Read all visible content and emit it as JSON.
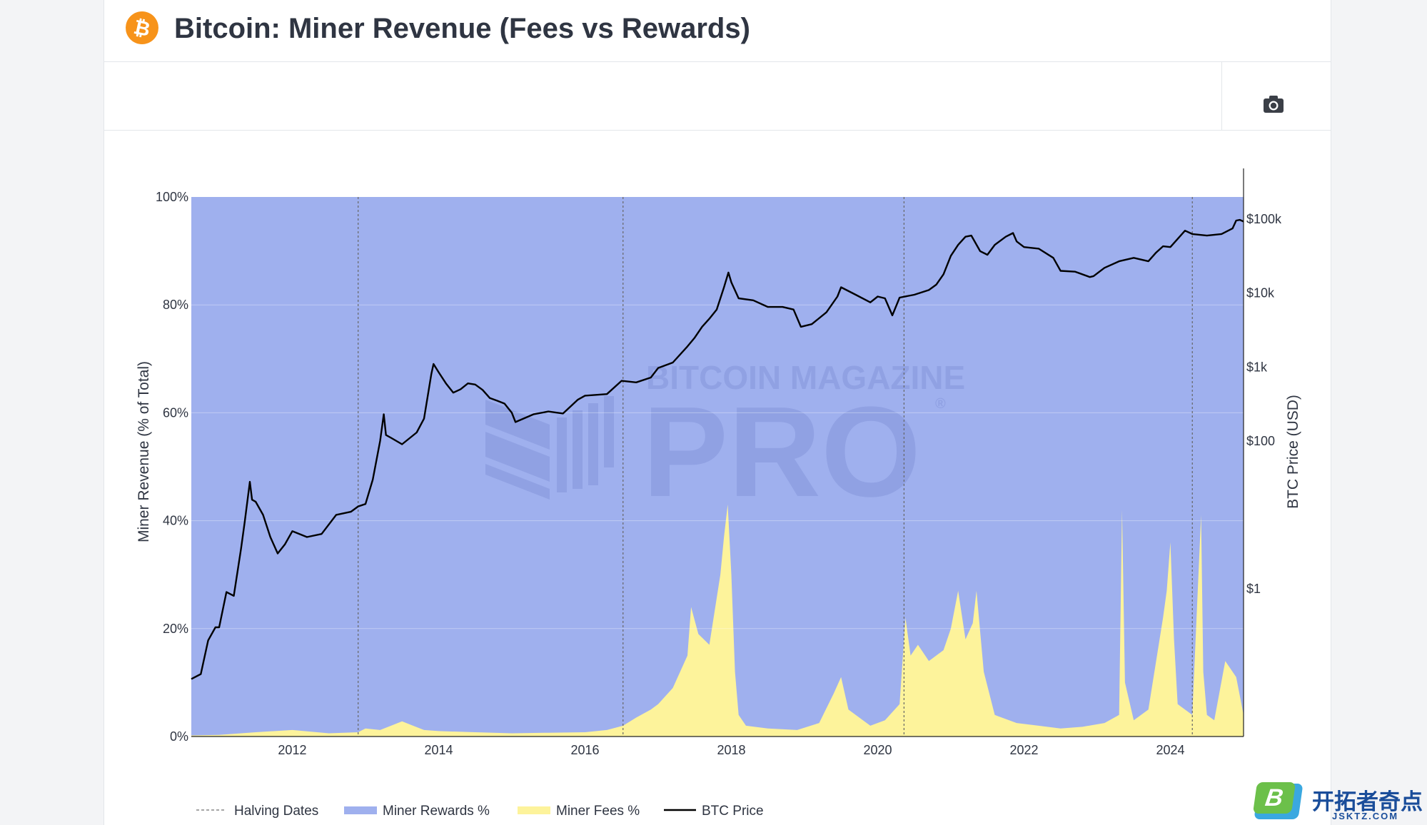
{
  "header": {
    "title": "Bitcoin: Miner Revenue (Fees vs Rewards)",
    "logo_icon": "bitcoin-logo-icon"
  },
  "toolbar": {
    "camera_icon": "camera-icon"
  },
  "watermark": {
    "line1": "BITCOIN MAGAZINE",
    "line2": "PRO",
    "reg": "®"
  },
  "badge": {
    "logo_letter": "B",
    "text_cn": "开拓者奇点",
    "text_en": "JSKTZ.COM"
  },
  "colors": {
    "rewards": "#9fb0ee",
    "fees": "#fdf39b",
    "price": "#000000",
    "halving": "#666666",
    "bitcoin_orange": "#f7931a"
  },
  "chart_data": {
    "type": "area",
    "left_axis": {
      "title": "Miner Revenue (% of Total)",
      "range": [
        0,
        100
      ],
      "ticks": [
        "0%",
        "20%",
        "40%",
        "60%",
        "80%",
        "100%"
      ],
      "tick_values": [
        0,
        20,
        40,
        60,
        80,
        100
      ]
    },
    "right_axis": {
      "title": "BTC Price (USD)",
      "scale": "log",
      "range": [
        0.01,
        200000
      ],
      "ticks": [
        "$1",
        "$100",
        "$1k",
        "$10k",
        "$100k"
      ],
      "tick_values": [
        1,
        100,
        1000,
        10000,
        100000
      ]
    },
    "x_axis": {
      "range": [
        2010.62,
        2025.0
      ],
      "ticks": [
        "2012",
        "2014",
        "2016",
        "2018",
        "2020",
        "2022",
        "2024"
      ],
      "tick_values": [
        2012,
        2014,
        2016,
        2018,
        2020,
        2022,
        2024
      ]
    },
    "grid": true,
    "legend": {
      "placement": "bottom",
      "entries": [
        "Halving Dates",
        "Miner Rewards %",
        "Miner Fees %",
        "BTC Price"
      ]
    },
    "halving_dates": [
      2012.9,
      2016.52,
      2020.36,
      2024.3
    ],
    "series": [
      {
        "name": "Miner Fees %",
        "x": [
          2010.62,
          2011.0,
          2011.5,
          2012.0,
          2012.5,
          2012.9,
          2013.0,
          2013.2,
          2013.5,
          2013.8,
          2014.0,
          2014.5,
          2015.0,
          2015.5,
          2016.0,
          2016.3,
          2016.52,
          2016.7,
          2016.9,
          2017.0,
          2017.2,
          2017.4,
          2017.45,
          2017.55,
          2017.7,
          2017.85,
          2017.9,
          2017.95,
          2018.0,
          2018.05,
          2018.1,
          2018.2,
          2018.5,
          2018.9,
          2019.2,
          2019.4,
          2019.5,
          2019.6,
          2019.9,
          2020.1,
          2020.3,
          2020.38,
          2020.45,
          2020.55,
          2020.7,
          2020.9,
          2021.0,
          2021.1,
          2021.2,
          2021.3,
          2021.35,
          2021.45,
          2021.6,
          2021.9,
          2022.2,
          2022.5,
          2022.8,
          2023.1,
          2023.3,
          2023.34,
          2023.38,
          2023.5,
          2023.7,
          2023.9,
          2023.95,
          2024.0,
          2024.05,
          2024.1,
          2024.3,
          2024.42,
          2024.45,
          2024.5,
          2024.6,
          2024.75,
          2024.9,
          2025.0
        ],
        "values": [
          0.2,
          0.3,
          0.8,
          1.2,
          0.6,
          0.8,
          1.5,
          1.2,
          2.8,
          1.2,
          1.0,
          0.8,
          0.6,
          0.7,
          0.8,
          1.2,
          2.0,
          3.5,
          5.0,
          6.0,
          9.0,
          15.0,
          24.0,
          19.0,
          17.0,
          30.0,
          37.0,
          43.0,
          30.0,
          12.0,
          4.0,
          2.0,
          1.5,
          1.2,
          2.5,
          8.0,
          11.0,
          5.0,
          2.0,
          3.0,
          6.0,
          22.0,
          15.0,
          17.0,
          14.0,
          16.0,
          20.0,
          27.0,
          18.0,
          21.0,
          27.0,
          12.0,
          4.0,
          2.5,
          2.0,
          1.5,
          1.8,
          2.5,
          4.0,
          42.0,
          10.0,
          3.0,
          5.0,
          22.0,
          27.0,
          36.0,
          18.0,
          6.0,
          4.0,
          41.0,
          12.0,
          4.0,
          3.0,
          14.0,
          11.0,
          4.0
        ]
      },
      {
        "name": "Miner Rewards %",
        "values_note": "Miner Rewards % = 100 - Miner Fees %"
      },
      {
        "name": "BTC Price",
        "x": [
          2010.62,
          2010.75,
          2010.85,
          2010.95,
          2011.0,
          2011.1,
          2011.2,
          2011.3,
          2011.35,
          2011.42,
          2011.45,
          2011.5,
          2011.6,
          2011.7,
          2011.8,
          2011.9,
          2012.0,
          2012.2,
          2012.4,
          2012.6,
          2012.8,
          2012.9,
          2013.0,
          2013.1,
          2013.2,
          2013.25,
          2013.28,
          2013.35,
          2013.5,
          2013.7,
          2013.8,
          2013.9,
          2013.93,
          2014.0,
          2014.1,
          2014.2,
          2014.3,
          2014.4,
          2014.5,
          2014.6,
          2014.7,
          2014.8,
          2014.9,
          2015.0,
          2015.05,
          2015.3,
          2015.5,
          2015.7,
          2015.9,
          2016.0,
          2016.3,
          2016.5,
          2016.7,
          2016.9,
          2017.0,
          2017.2,
          2017.4,
          2017.5,
          2017.6,
          2017.7,
          2017.8,
          2017.9,
          2017.96,
          2018.0,
          2018.1,
          2018.3,
          2018.5,
          2018.7,
          2018.85,
          2018.95,
          2019.1,
          2019.3,
          2019.45,
          2019.5,
          2019.7,
          2019.9,
          2020.0,
          2020.1,
          2020.2,
          2020.3,
          2020.5,
          2020.7,
          2020.8,
          2020.9,
          2021.0,
          2021.1,
          2021.2,
          2021.28,
          2021.4,
          2021.5,
          2021.6,
          2021.75,
          2021.85,
          2021.9,
          2022.0,
          2022.2,
          2022.4,
          2022.5,
          2022.7,
          2022.9,
          2022.95,
          2023.1,
          2023.3,
          2023.5,
          2023.7,
          2023.8,
          2023.9,
          2024.0,
          2024.2,
          2024.3,
          2024.5,
          2024.7,
          2024.85,
          2024.9,
          2024.95,
          2025.0
        ],
        "values": [
          0.06,
          0.07,
          0.2,
          0.3,
          0.3,
          0.9,
          0.8,
          3.5,
          8.0,
          28.0,
          16.0,
          15.0,
          10.0,
          5.0,
          3.0,
          4.0,
          6.0,
          5.0,
          5.5,
          10.0,
          11.0,
          13.0,
          14.0,
          30.0,
          100.0,
          230.0,
          120.0,
          110.0,
          90.0,
          130.0,
          200.0,
          800.0,
          1100.0,
          850.0,
          600.0,
          450.0,
          500.0,
          600.0,
          580.0,
          490.0,
          380.0,
          350.0,
          320.0,
          240.0,
          180.0,
          230.0,
          250.0,
          235.0,
          360.0,
          410.0,
          430.0,
          650.0,
          620.0,
          720.0,
          970.0,
          1150.0,
          1900.0,
          2500.0,
          3500.0,
          4500.0,
          6000.0,
          12000.0,
          19000.0,
          14000.0,
          8500.0,
          8000.0,
          6500.0,
          6500.0,
          6000.0,
          3500.0,
          3800.0,
          5500.0,
          9000.0,
          12000.0,
          9500.0,
          7500.0,
          9000.0,
          8500.0,
          5000.0,
          8700.0,
          9500.0,
          11000.0,
          13000.0,
          18000.0,
          32000.0,
          45000.0,
          58000.0,
          60000.0,
          37000.0,
          33000.0,
          45000.0,
          58000.0,
          65000.0,
          50000.0,
          42000.0,
          40000.0,
          30000.0,
          20000.0,
          19500.0,
          16500.0,
          17000.0,
          22000.0,
          27000.0,
          30000.0,
          27000.0,
          35000.0,
          43000.0,
          42000.0,
          70000.0,
          63000.0,
          60000.0,
          63000.0,
          75000.0,
          96000.0,
          98000.0,
          93000.0
        ]
      }
    ]
  }
}
